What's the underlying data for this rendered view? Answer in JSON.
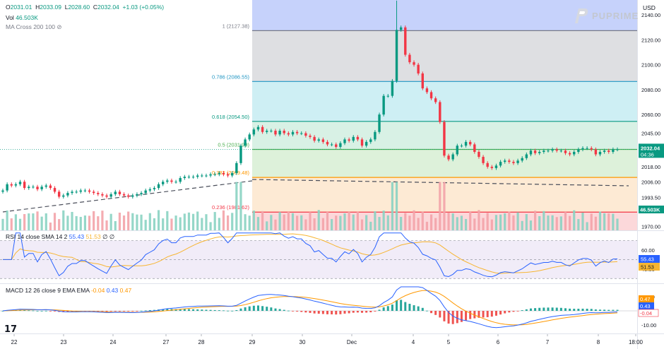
{
  "header": {
    "symbol_ohlc": {
      "o_label": "O",
      "o": "2031.01",
      "h_label": "H",
      "h": "2033.09",
      "l_label": "L",
      "l": "2028.60",
      "c_label": "C",
      "c": "2032.04",
      "chg": "+1.03 (+0.05%)"
    },
    "volume": {
      "label": "Vol",
      "value": "46.503K"
    },
    "ma_indicator": "MA Cross 200 100",
    "currency": "USD",
    "brand": "PUPRIME"
  },
  "chart_data": [
    {
      "type": "candlestick",
      "panel": "price",
      "x_ticks": [
        "22",
        "23",
        "24",
        "27",
        "28",
        "29",
        "30",
        "Dec",
        "4",
        "5",
        "6",
        "7",
        "8",
        "18:00"
      ],
      "y_ticks": [
        2140,
        2120,
        2100,
        2080,
        2060,
        2045,
        2032.04,
        2018,
        2006,
        1993.5,
        1970
      ],
      "y_tick_labels": [
        "2140.00",
        "2120.00",
        "2100.00",
        "2080.00",
        "2060.00",
        "2045.00",
        "2032.04",
        "2018.00",
        "2006.00",
        "1993.50",
        "1970.00"
      ],
      "ylim": [
        1967,
        2152
      ],
      "last_price": "2032.04",
      "countdown": "04:36",
      "fib_levels": [
        {
          "ratio": "1",
          "price": 2127.38,
          "label": "1 (2127.38)",
          "color": "#787b86"
        },
        {
          "ratio": "0.786",
          "price": 2086.55,
          "label": "0.786 (2086.55)",
          "color": "#2196c3"
        },
        {
          "ratio": "0.618",
          "price": 2054.5,
          "label": "0.618 (2054.50)",
          "color": "#089981"
        },
        {
          "ratio": "0.5",
          "price": 2031.99,
          "label": "0.5 (2031.99)",
          "color": "#4caf50"
        },
        {
          "ratio": "0.382",
          "price": 2009.48,
          "label": "0.382 (2009.48)",
          "color": "#ff9800"
        },
        {
          "ratio": "0.236",
          "price": 1981.62,
          "label": "0.236 (1981.62)",
          "color": "#f23645"
        }
      ],
      "closes": [
        1999,
        2004,
        2003,
        2004,
        2006,
        2001,
        2002,
        2002,
        2000,
        2002,
        2003,
        2001,
        1998,
        1994,
        1995,
        1997,
        1998,
        1998,
        1999,
        1999,
        1998,
        1997,
        1996,
        1995,
        1994,
        1996,
        1998,
        1996,
        1995,
        1994,
        1995,
        1996,
        1997,
        1999,
        2000,
        2001,
        2004,
        2006,
        2007,
        2006,
        2006,
        2009,
        2010,
        2010,
        2010,
        2011,
        2011,
        2011,
        2012,
        2012,
        2013,
        2012,
        2011,
        2013,
        2021,
        2035,
        2040,
        2044,
        2048,
        2050,
        2046,
        2047,
        2047,
        2044,
        2047,
        2045,
        2044,
        2046,
        2045,
        2045,
        2043,
        2042,
        2039,
        2040,
        2038,
        2036,
        2036,
        2034,
        2037,
        2040,
        2039,
        2042,
        2040,
        2035,
        2038,
        2040,
        2046,
        2060,
        2075,
        2075,
        2087,
        2128,
        2130,
        2108,
        2102,
        2100,
        2093,
        2081,
        2078,
        2073,
        2070,
        2054,
        2027,
        2024,
        2028,
        2035,
        2035,
        2038,
        2036,
        2030,
        2026,
        2021,
        2018,
        2017,
        2019,
        2022,
        2023,
        2022,
        2021,
        2023,
        2025,
        2028,
        2031,
        2029,
        2030,
        2031,
        2031,
        2032,
        2031,
        2031,
        2029,
        2028,
        2030,
        2032,
        2033,
        2033,
        2032,
        2028,
        2030,
        2031,
        2030,
        2032,
        2032.04
      ],
      "volume": {
        "label": "Vol",
        "last": "46.503K"
      }
    },
    {
      "type": "line",
      "panel": "rsi",
      "label": "RSI 14 close SMA 14 2",
      "values_text": [
        "55.43",
        "51.53",
        "∅",
        "∅"
      ],
      "y_ticks": [
        60,
        40
      ],
      "y_tick_labels": [
        "60.00",
        "40.00"
      ],
      "ylim": [
        25,
        80
      ],
      "last_rsi": "55.43",
      "last_sma": "51.53",
      "colors": {
        "rsi": "#2962ff",
        "sma": "#f7b531"
      }
    },
    {
      "type": "line",
      "panel": "macd",
      "label": "MACD 12 26 close 9 EMA EMA",
      "values_text": [
        "-0.04",
        "0.43",
        "0.47"
      ],
      "y_ticks": [
        10,
        0,
        -10
      ],
      "y_tick_labels": [
        "10.00",
        "0.00",
        "-10.00"
      ],
      "ylim": [
        -16,
        19
      ],
      "last_macd": "0.43",
      "last_signal": "0.47",
      "last_hist": "-0.04",
      "colors": {
        "macd": "#2962ff",
        "signal": "#ff9800",
        "hist_up": "#26a69a",
        "hist_down": "#ef5350"
      }
    }
  ]
}
